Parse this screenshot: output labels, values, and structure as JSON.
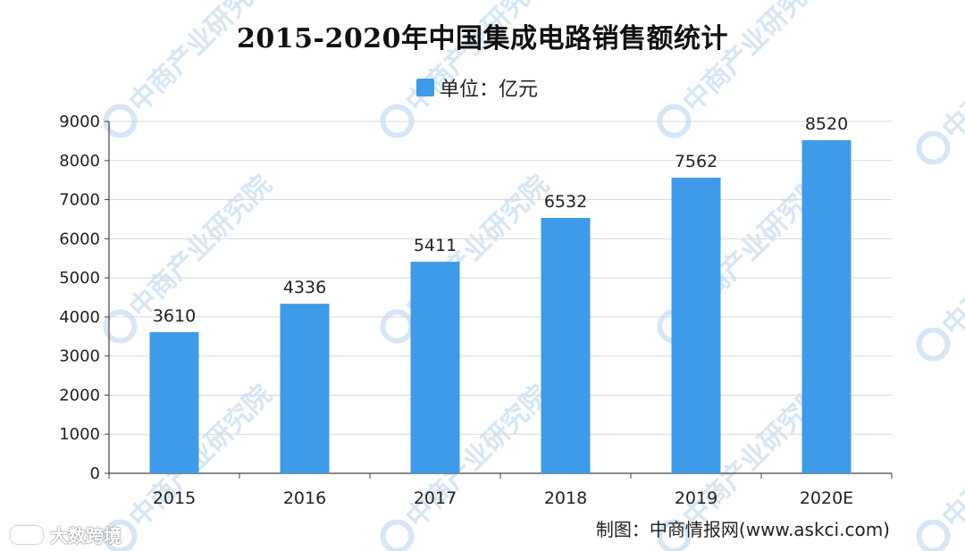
{
  "title": "2015-2020年中国集成电路销售额统计",
  "legend_label": "单位：亿元",
  "source_note": "制图：中商情报网(www.askci.com)",
  "watermark": {
    "org_text": "中商产业研究院",
    "credit_text": "大数跨境"
  },
  "colors": {
    "bar": "#3d9be9",
    "axis": "#444444",
    "grid": "#d9d9d9",
    "watermark": "#d6e6f5"
  },
  "chart_data": {
    "type": "bar",
    "categories": [
      "2015",
      "2016",
      "2017",
      "2018",
      "2019",
      "2020E"
    ],
    "series": [
      {
        "name": "单位：亿元",
        "values": [
          3610,
          4336,
          5411,
          6532,
          7562,
          8520
        ]
      }
    ],
    "ylim": [
      0,
      9000
    ],
    "yticks": [
      0,
      1000,
      2000,
      3000,
      4000,
      5000,
      6000,
      7000,
      8000,
      9000
    ],
    "grid": true,
    "legend_position": "top-center",
    "data_labels": true
  }
}
